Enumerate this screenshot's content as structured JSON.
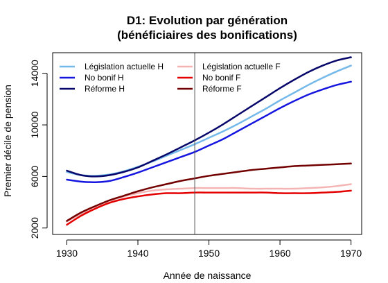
{
  "chart_data": {
    "type": "line",
    "title_line1": "D1: Evolution par génération",
    "title_line2": "(bénéficiaires des bonifications)",
    "xlabel": "Année de naissance",
    "ylabel": "Premier décile de pension",
    "xlim": [
      1928,
      1971.5
    ],
    "ylim": [
      1500,
      15600
    ],
    "x_ticks": [
      1930,
      1940,
      1950,
      1960,
      1970
    ],
    "y_ticks": [
      2000,
      6000,
      10000,
      14000
    ],
    "vline_x": 1948,
    "x": [
      1930,
      1932,
      1934,
      1936,
      1938,
      1940,
      1942,
      1944,
      1946,
      1948,
      1950,
      1952,
      1954,
      1956,
      1958,
      1960,
      1962,
      1964,
      1966,
      1968,
      1970
    ],
    "series": [
      {
        "name": "Législation actuelle H",
        "color": "#74B9EA",
        "width": 2.5,
        "values": [
          6350,
          6100,
          6050,
          6150,
          6400,
          6750,
          7150,
          7600,
          8050,
          8500,
          9000,
          9500,
          10050,
          10650,
          11250,
          11900,
          12500,
          13100,
          13650,
          14150,
          14600
        ]
      },
      {
        "name": "No bonif H",
        "color": "#1515E0",
        "width": 2.5,
        "values": [
          5750,
          5600,
          5550,
          5650,
          5950,
          6300,
          6700,
          7100,
          7500,
          7900,
          8400,
          8900,
          9500,
          10100,
          10700,
          11300,
          11850,
          12350,
          12750,
          13100,
          13350
        ]
      },
      {
        "name": "Réforme H",
        "color": "#07076B",
        "width": 2.5,
        "values": [
          6450,
          6100,
          6000,
          6100,
          6350,
          6700,
          7200,
          7700,
          8250,
          8800,
          9400,
          10050,
          10750,
          11450,
          12150,
          12850,
          13500,
          14100,
          14600,
          15000,
          15250
        ]
      },
      {
        "name": "Législation actuelle F",
        "color": "#F5B4B4",
        "width": 2.5,
        "values": [
          2500,
          3100,
          3650,
          4100,
          4450,
          4700,
          4900,
          5000,
          5050,
          5100,
          5100,
          5100,
          5100,
          5050,
          5050,
          5050,
          5050,
          5100,
          5150,
          5250,
          5400
        ]
      },
      {
        "name": "No bonif F",
        "color": "#E50000",
        "width": 2.5,
        "values": [
          2250,
          2950,
          3500,
          3950,
          4250,
          4450,
          4600,
          4700,
          4700,
          4750,
          4750,
          4750,
          4750,
          4750,
          4750,
          4700,
          4700,
          4700,
          4750,
          4800,
          4900
        ]
      },
      {
        "name": "Réforme F",
        "color": "#730000",
        "width": 2.5,
        "values": [
          2550,
          3200,
          3700,
          4150,
          4500,
          4850,
          5150,
          5400,
          5650,
          5850,
          6050,
          6200,
          6350,
          6500,
          6600,
          6700,
          6800,
          6850,
          6900,
          6950,
          7000
        ]
      }
    ],
    "legend_placement": "top-left, two columns inside plot"
  }
}
